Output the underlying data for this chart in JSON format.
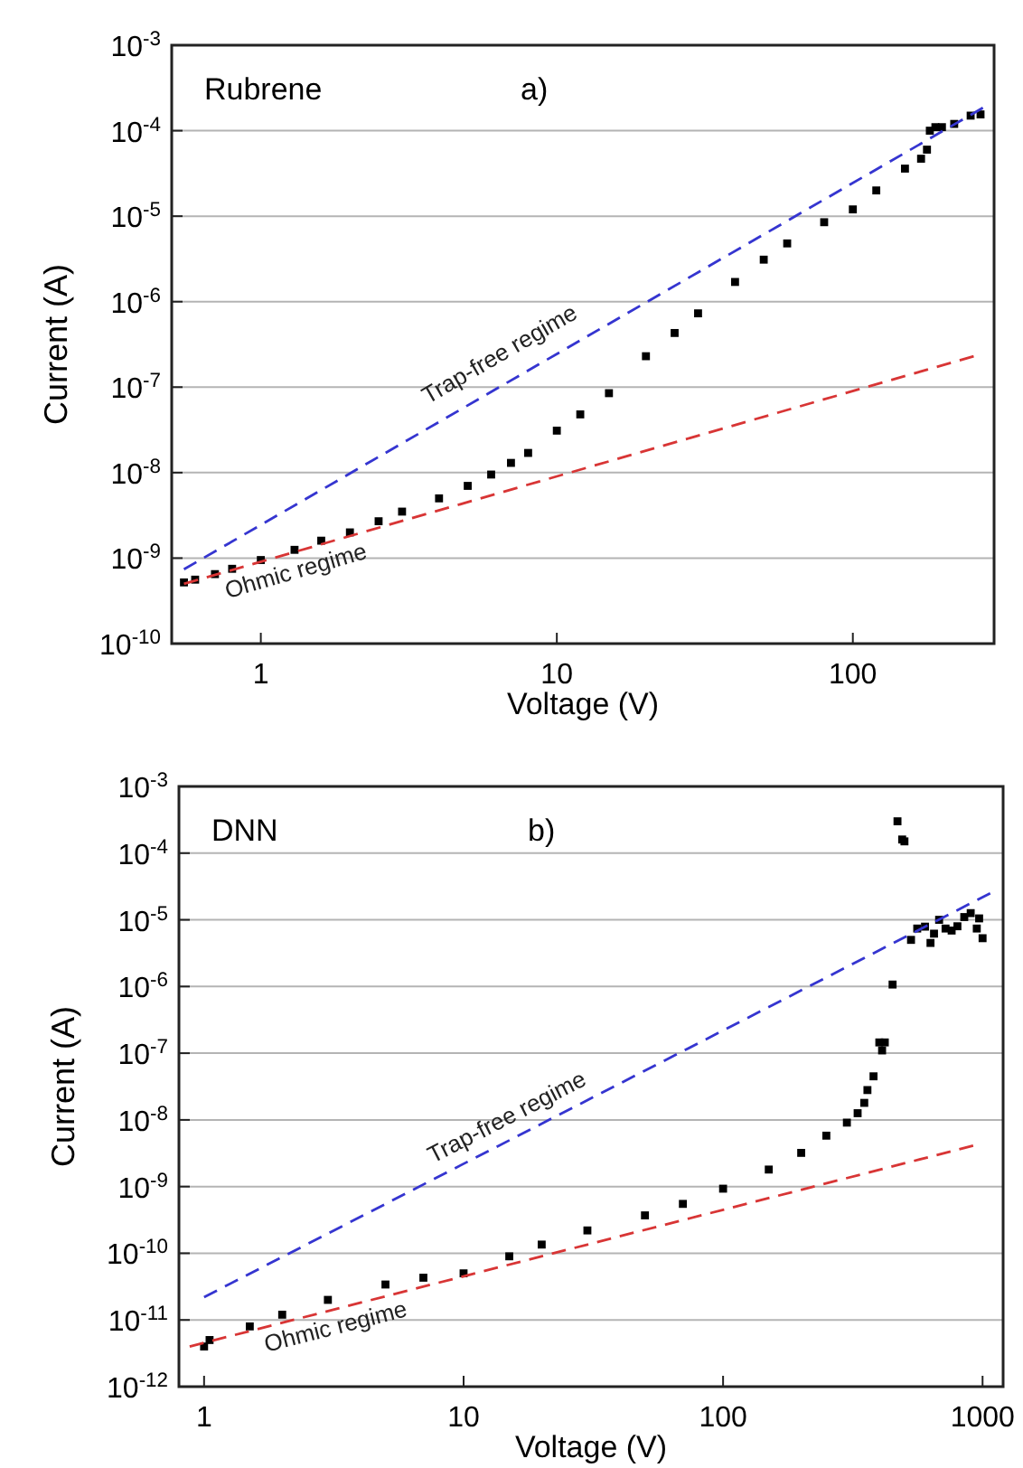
{
  "chart_data": [
    {
      "type": "scatter",
      "xlabel": "Voltage (V)",
      "ylabel": "Current (A)",
      "log": "xy",
      "grid": "y",
      "marker": "square",
      "xlim": [
        0.5,
        300
      ],
      "ylim": [
        1e-10,
        0.001
      ],
      "xticks": [
        1,
        10,
        100
      ],
      "yticks": [
        {
          "value": 1e-10,
          "label": "10$^{-10}$"
        },
        {
          "value": 1e-09,
          "label": "10$^{-9}$"
        },
        {
          "value": 1e-08,
          "label": "10$^{-8}$"
        },
        {
          "value": 1e-07,
          "label": "10$^{-7}$"
        },
        {
          "value": 1e-06,
          "label": "10$^{-6}$"
        },
        {
          "value": 1e-05,
          "label": "10$^{-5}$"
        },
        {
          "value": 0.0001,
          "label": "10$^{-4}$"
        },
        {
          "value": 0.001,
          "label": "10$^{-3}$"
        }
      ],
      "annotations": [
        "Rubrene",
        "a)",
        "Trap-free regime",
        "Ohmic regime"
      ],
      "series": [
        {
          "color": "#000000",
          "x": [
            0.55,
            0.6,
            0.7,
            0.8,
            1,
            1.3,
            1.6,
            2,
            2.5,
            3,
            4,
            5,
            6,
            7,
            8,
            10,
            12,
            15,
            20,
            25,
            30,
            40,
            50,
            60,
            80,
            100,
            120,
            150,
            170,
            178,
            182,
            190,
            200,
            220,
            250,
            270
          ],
          "values": [
            5.2e-10,
            5.6e-10,
            6.5e-10,
            7.5e-10,
            9.5e-10,
            1.25e-09,
            1.6e-09,
            2e-09,
            2.7e-09,
            3.5e-09,
            5e-09,
            7e-09,
            9.5e-09,
            1.3e-08,
            1.7e-08,
            3.1e-08,
            4.8e-08,
            8.5e-08,
            2.3e-07,
            4.3e-07,
            7.3e-07,
            1.7e-06,
            3.1e-06,
            4.8e-06,
            8.5e-06,
            1.2e-05,
            2e-05,
            3.6e-05,
            4.7e-05,
            6e-05,
            0.0001,
            0.00011,
            0.00011,
            0.00012,
            0.00015,
            0.000155
          ]
        },
        {
          "type": "line",
          "line_style": "dashed",
          "marker": "none",
          "color": "#3535d0",
          "x": [
            0.55,
            275
          ],
          "values": [
            7.4e-10,
            0.000185
          ]
        },
        {
          "type": "line",
          "line_style": "dashed",
          "marker": "none",
          "color": "#d83535",
          "x": [
            0.55,
            256
          ],
          "values": [
            5e-10,
            2.3e-07
          ]
        }
      ]
    },
    {
      "type": "scatter",
      "xlabel": "Voltage (V)",
      "ylabel": "Current (A)",
      "log": "xy",
      "grid": "y",
      "marker": "square",
      "xlim": [
        0.8,
        1200
      ],
      "ylim": [
        1e-12,
        0.001
      ],
      "xticks": [
        1,
        10,
        100,
        1000
      ],
      "yticks": [
        {
          "value": 1e-12,
          "label": "10$^{-12}$"
        },
        {
          "value": 1e-11,
          "label": "10$^{-11}$"
        },
        {
          "value": 1e-10,
          "label": "10$^{-10}$"
        },
        {
          "value": 1e-09,
          "label": "10$^{-9}$"
        },
        {
          "value": 1e-08,
          "label": "10$^{-8}$"
        },
        {
          "value": 1e-07,
          "label": "10$^{-7}$"
        },
        {
          "value": 1e-06,
          "label": "10$^{-6}$"
        },
        {
          "value": 1e-05,
          "label": "10$^{-5}$"
        },
        {
          "value": 0.0001,
          "label": "10$^{-4}$"
        },
        {
          "value": 0.001,
          "label": "10$^{-3}$"
        }
      ],
      "annotations": [
        "DNN",
        "b)",
        "Trap-free regime",
        "Ohmic regime"
      ],
      "series": [
        {
          "color": "#000000",
          "x": [
            1,
            1.05,
            1.5,
            2,
            3,
            5,
            7,
            10,
            15,
            20,
            30,
            50,
            70,
            100,
            150,
            200,
            250,
            300,
            330,
            350,
            360,
            380,
            400,
            410,
            420,
            450,
            470,
            490,
            500,
            530,
            560,
            600,
            630,
            650,
            680,
            720,
            760,
            800,
            850,
            900,
            950,
            970,
            1000
          ],
          "values": [
            4e-12,
            5e-12,
            8e-12,
            1.2e-11,
            2e-11,
            3.4e-11,
            4.3e-11,
            5e-11,
            9e-11,
            1.35e-10,
            2.2e-10,
            3.7e-10,
            5.5e-10,
            9.3e-10,
            1.8e-09,
            3.2e-09,
            5.8e-09,
            9.1e-09,
            1.26e-08,
            1.8e-08,
            2.8e-08,
            4.5e-08,
            1.45e-07,
            1.1e-07,
            1.45e-07,
            1.07e-06,
            0.0003,
            0.00016,
            0.00015,
            5e-06,
            7.4e-06,
            7.9e-06,
            4.5e-06,
            6.2e-06,
            1e-05,
            7.4e-06,
            6.9e-06,
            8e-06,
            1.1e-05,
            1.26e-05,
            7.4e-06,
            1.05e-05,
            5.3e-06
          ]
        },
        {
          "type": "line",
          "line_style": "dashed",
          "marker": "none",
          "color": "#3535d0",
          "x": [
            1,
            1070
          ],
          "values": [
            2.2e-11,
            2.5e-05
          ]
        },
        {
          "type": "line",
          "line_style": "dashed",
          "marker": "none",
          "color": "#d83535",
          "x": [
            0.88,
            920
          ],
          "values": [
            4e-12,
            4.1e-09
          ]
        }
      ]
    }
  ]
}
